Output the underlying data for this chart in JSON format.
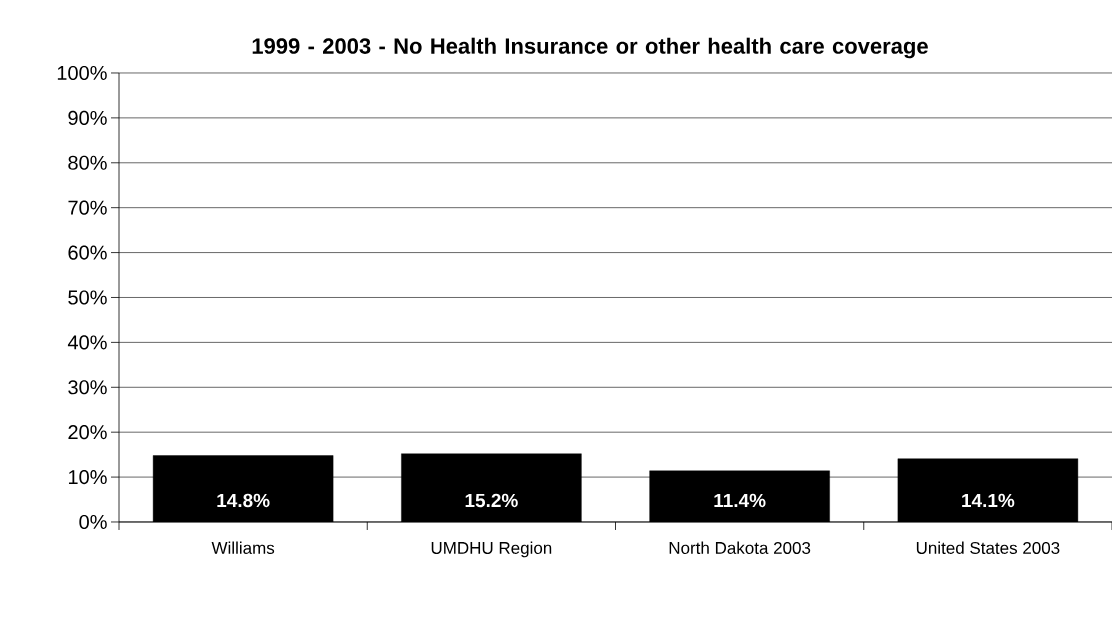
{
  "chart_data": {
    "type": "bar",
    "title": "1999 - 2003 - No Health Insurance or other health care coverage",
    "categories": [
      "Williams",
      "UMDHU Region",
      "North Dakota 2003",
      "United States 2003"
    ],
    "values": [
      14.8,
      15.2,
      11.4,
      14.1
    ],
    "value_labels": [
      "14.8%",
      "15.2%",
      "11.4%",
      "14.1%"
    ],
    "color": "#000000",
    "ylim": [
      0,
      100
    ],
    "yticks": [
      {
        "value": 0,
        "label": "0%"
      },
      {
        "value": 10,
        "label": "10%"
      },
      {
        "value": 20,
        "label": "20%"
      },
      {
        "value": 30,
        "label": "30%"
      },
      {
        "value": 40,
        "label": "40%"
      },
      {
        "value": 50,
        "label": "50%"
      },
      {
        "value": 60,
        "label": "60%"
      },
      {
        "value": 70,
        "label": "70%"
      },
      {
        "value": 80,
        "label": "80%"
      },
      {
        "value": 90,
        "label": "90%"
      },
      {
        "value": 100,
        "label": "100%"
      }
    ],
    "grid": "y"
  }
}
